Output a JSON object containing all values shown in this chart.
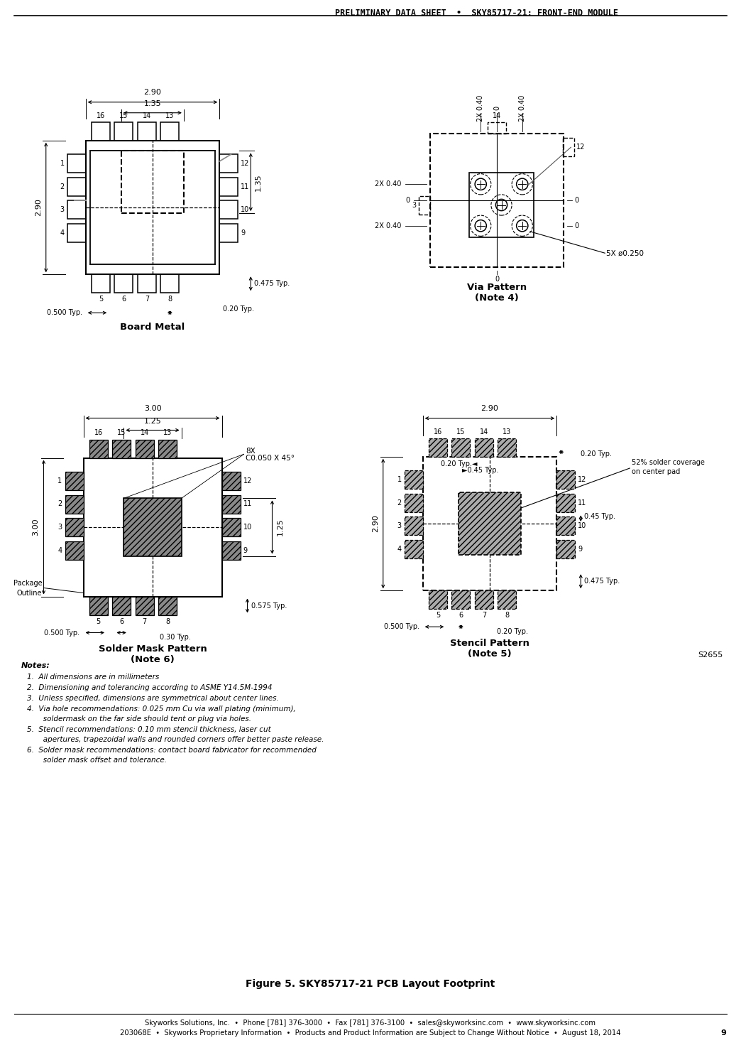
{
  "page_title": "PRELIMINARY DATA SHEET  •  SKY85717-21: FRONT-END MODULE",
  "footer_line1": "Skyworks Solutions, Inc.  •  Phone [781] 376-3000  •  Fax [781] 376-3100  •  sales@skyworksinc.com  •  www.skyworksinc.com",
  "footer_line2": "203068E  •  Skyworks Proprietary Information  •  Products and Product Information are Subject to Change Without Notice  •  August 18, 2014",
  "footer_page": "9",
  "figure_title": "Figure 5. SKY85717-21 PCB Layout Footprint",
  "s_code": "S2655",
  "notes": [
    "All dimensions are in millimeters",
    "Dimensioning and tolerancing according to ASME Y14.5M-1994",
    "Unless specified, dimensions are symmetrical about center lines.",
    "Via hole recommendations: 0.025 mm Cu via wall plating (minimum), soldermask on the far side should tent or plug via holes.",
    "Stencil recommendations: 0.10 mm stencil thickness, laser cut apertures, trapezoidal walls and rounded corners offer better paste release.",
    "Solder mask recommendations: contact board fabricator for recommended solder mask offset and tolerance."
  ],
  "notes_wrap": [
    [
      "All dimensions are in millimeters"
    ],
    [
      "Dimensioning and tolerancing according to ASME Y14.5M-1994"
    ],
    [
      "Unless specified, dimensions are symmetrical about center lines."
    ],
    [
      "Via hole recommendations: 0.025 mm Cu via wall plating (minimum),",
      "   soldermask on the far side should tent or plug via holes."
    ],
    [
      "Stencil recommendations: 0.10 mm stencil thickness, laser cut",
      "   apertures, trapezoidal walls and rounded corners offer better paste release."
    ],
    [
      "Solder mask recommendations: contact board fabricator for recommended",
      "   solder mask offset and tolerance."
    ]
  ]
}
